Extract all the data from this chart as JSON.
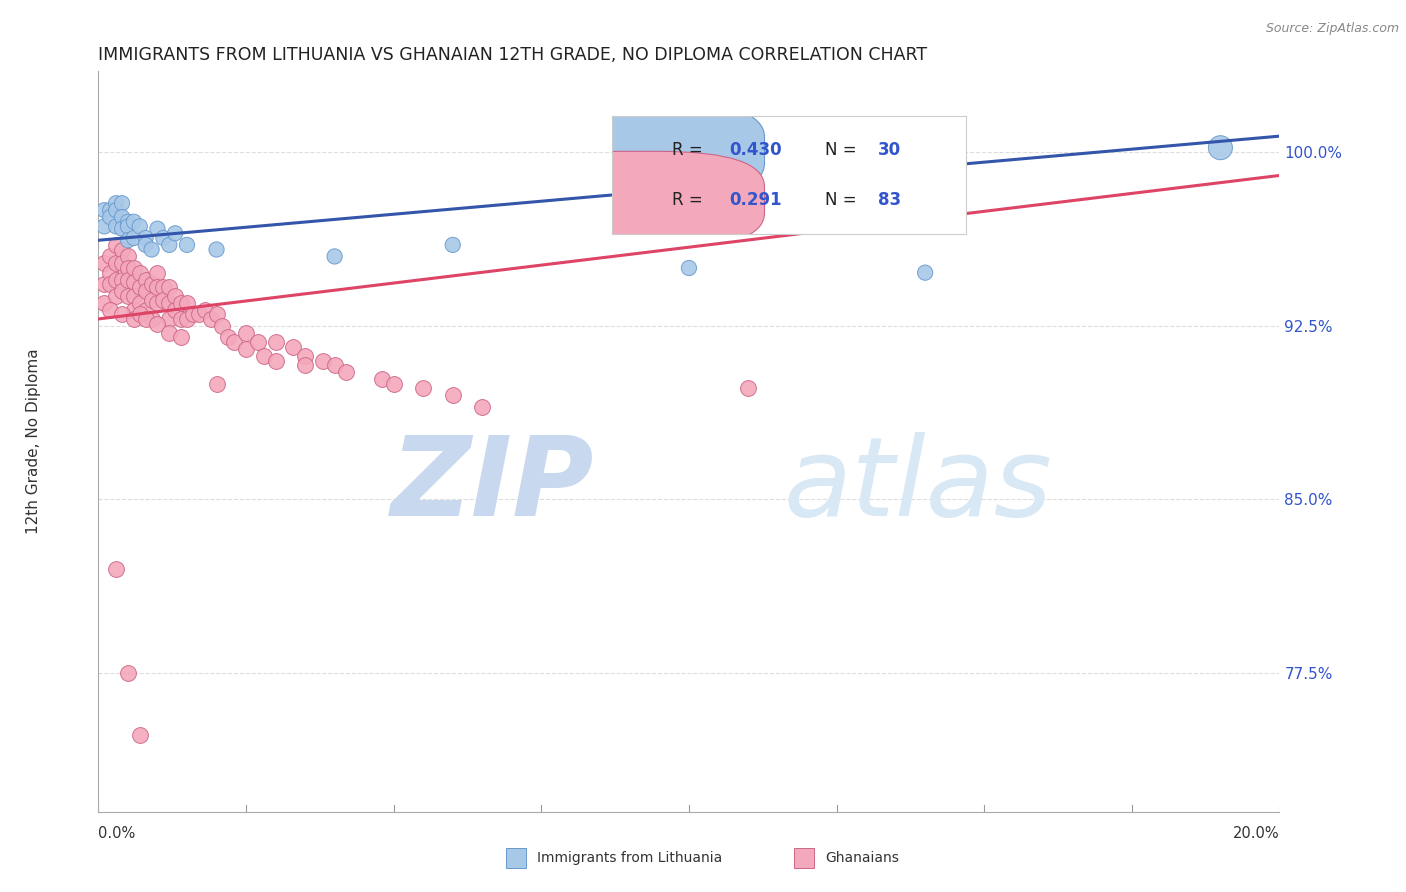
{
  "title": "IMMIGRANTS FROM LITHUANIA VS GHANAIAN 12TH GRADE, NO DIPLOMA CORRELATION CHART",
  "source": "Source: ZipAtlas.com",
  "ylabel": "12th Grade, No Diploma",
  "right_ytick_labels": [
    "100.0%",
    "92.5%",
    "85.0%",
    "77.5%"
  ],
  "right_ytick_values": [
    1.0,
    0.925,
    0.85,
    0.775
  ],
  "legend_label_blue": "Immigrants from Lithuania",
  "legend_label_pink": "Ghanaians",
  "blue_color": "#A8C8E8",
  "pink_color": "#F4A8BC",
  "blue_edge_color": "#6699CC",
  "pink_edge_color": "#CC6688",
  "blue_line_color": "#3355AA",
  "pink_line_color": "#DD4466",
  "text_dark": "#222222",
  "text_blue": "#3355CC",
  "watermark_color": "#D8E8F5",
  "background_color": "#FFFFFF",
  "grid_color": "#DDDDDD",
  "xlim": [
    0.0,
    0.2
  ],
  "ylim": [
    0.715,
    1.035
  ],
  "blue_x": [
    0.001,
    0.001,
    0.002,
    0.002,
    0.003,
    0.003,
    0.003,
    0.004,
    0.004,
    0.004,
    0.005,
    0.005,
    0.005,
    0.006,
    0.006,
    0.007,
    0.008,
    0.008,
    0.009,
    0.01,
    0.011,
    0.012,
    0.013,
    0.015,
    0.02,
    0.04,
    0.06,
    0.1,
    0.14,
    0.19
  ],
  "blue_y": [
    0.975,
    0.968,
    0.975,
    0.972,
    0.978,
    0.975,
    0.968,
    0.978,
    0.972,
    0.967,
    0.97,
    0.968,
    0.962,
    0.97,
    0.963,
    0.968,
    0.963,
    0.96,
    0.958,
    0.967,
    0.963,
    0.96,
    0.965,
    0.96,
    0.958,
    0.955,
    0.96,
    0.95,
    0.948,
    1.002
  ],
  "blue_sizes_base": [
    120,
    120,
    120,
    120,
    120,
    120,
    120,
    120,
    120,
    120,
    120,
    120,
    120,
    120,
    120,
    120,
    120,
    120,
    120,
    120,
    120,
    120,
    120,
    120,
    120,
    120,
    120,
    120,
    120,
    300
  ],
  "pink_x": [
    0.001,
    0.001,
    0.001,
    0.002,
    0.002,
    0.002,
    0.003,
    0.003,
    0.003,
    0.003,
    0.004,
    0.004,
    0.004,
    0.004,
    0.005,
    0.005,
    0.005,
    0.005,
    0.006,
    0.006,
    0.006,
    0.006,
    0.007,
    0.007,
    0.007,
    0.008,
    0.008,
    0.008,
    0.009,
    0.009,
    0.009,
    0.01,
    0.01,
    0.01,
    0.011,
    0.011,
    0.012,
    0.012,
    0.012,
    0.013,
    0.013,
    0.014,
    0.014,
    0.015,
    0.015,
    0.016,
    0.017,
    0.018,
    0.019,
    0.02,
    0.021,
    0.022,
    0.023,
    0.025,
    0.025,
    0.027,
    0.028,
    0.03,
    0.03,
    0.033,
    0.035,
    0.035,
    0.038,
    0.04,
    0.042,
    0.048,
    0.05,
    0.055,
    0.06,
    0.065,
    0.002,
    0.004,
    0.006,
    0.007,
    0.008,
    0.01,
    0.012,
    0.014,
    0.02,
    0.11,
    0.003,
    0.005,
    0.007
  ],
  "pink_y": [
    0.952,
    0.943,
    0.935,
    0.955,
    0.948,
    0.943,
    0.96,
    0.952,
    0.945,
    0.938,
    0.958,
    0.952,
    0.945,
    0.94,
    0.955,
    0.95,
    0.945,
    0.938,
    0.95,
    0.944,
    0.938,
    0.932,
    0.948,
    0.942,
    0.935,
    0.945,
    0.94,
    0.932,
    0.943,
    0.936,
    0.928,
    0.948,
    0.942,
    0.935,
    0.942,
    0.936,
    0.942,
    0.935,
    0.928,
    0.938,
    0.932,
    0.935,
    0.928,
    0.935,
    0.928,
    0.93,
    0.93,
    0.932,
    0.928,
    0.93,
    0.925,
    0.92,
    0.918,
    0.922,
    0.915,
    0.918,
    0.912,
    0.918,
    0.91,
    0.916,
    0.912,
    0.908,
    0.91,
    0.908,
    0.905,
    0.902,
    0.9,
    0.898,
    0.895,
    0.89,
    0.932,
    0.93,
    0.928,
    0.93,
    0.928,
    0.926,
    0.922,
    0.92,
    0.9,
    0.898,
    0.82,
    0.775,
    0.748
  ],
  "blue_trend": [
    0.962,
    1.007
  ],
  "pink_trend": [
    0.928,
    0.99
  ]
}
